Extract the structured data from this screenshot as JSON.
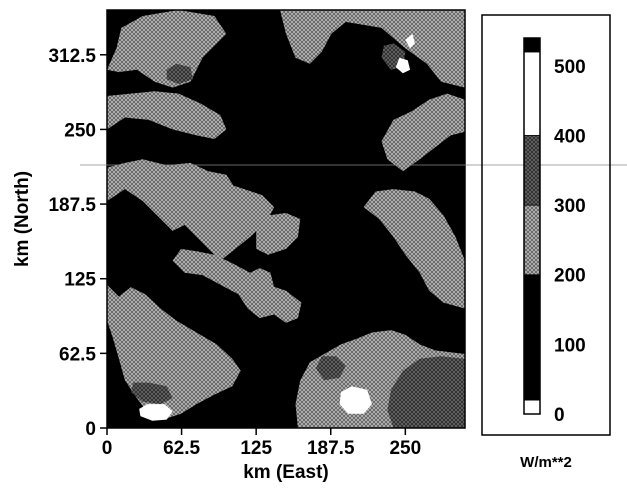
{
  "chart_data": {
    "type": "heatmap",
    "title": "",
    "xlabel": "km (East)",
    "ylabel": "km (North)",
    "xlim": [
      0,
      300
    ],
    "ylim": [
      0,
      350
    ],
    "x_ticks": [
      0,
      62.5,
      125,
      187.5,
      250
    ],
    "x_tick_labels": [
      "0",
      "62.5",
      "125",
      "187.5",
      "250"
    ],
    "y_ticks": [
      0,
      62.5,
      125,
      187.5,
      250,
      312.5
    ],
    "y_tick_labels": [
      "0",
      "62.5",
      "125",
      "187.5",
      "250",
      "312.5"
    ],
    "colorbar": {
      "unit_label": "W/m**2",
      "range": [
        0,
        540
      ],
      "tick_values": [
        0,
        100,
        200,
        300,
        400,
        500
      ],
      "tick_labels": [
        "0",
        "100",
        "200",
        "300",
        "400",
        "500"
      ],
      "bands": [
        {
          "from": 0,
          "to": 20,
          "fill": "white"
        },
        {
          "from": 20,
          "to": 200,
          "fill": "black"
        },
        {
          "from": 200,
          "to": 300,
          "fill": "light-crosshatch"
        },
        {
          "from": 300,
          "to": 400,
          "fill": "dark-crosshatch"
        },
        {
          "from": 400,
          "to": 520,
          "fill": "white"
        },
        {
          "from": 520,
          "to": 540,
          "fill": "black"
        }
      ]
    },
    "regions": [
      {
        "band": "light",
        "points": [
          [
            0,
            190
          ],
          [
            15,
            200
          ],
          [
            30,
            190
          ],
          [
            45,
            175
          ],
          [
            55,
            165
          ],
          [
            65,
            170
          ],
          [
            75,
            160
          ],
          [
            85,
            150
          ],
          [
            95,
            140
          ],
          [
            105,
            148
          ],
          [
            120,
            160
          ],
          [
            135,
            175
          ],
          [
            140,
            185
          ],
          [
            130,
            195
          ],
          [
            115,
            200
          ],
          [
            100,
            205
          ],
          [
            85,
            215
          ],
          [
            70,
            222
          ],
          [
            50,
            220
          ],
          [
            30,
            225
          ],
          [
            15,
            222
          ],
          [
            0,
            218
          ]
        ]
      },
      {
        "band": "light",
        "points": [
          [
            0,
            120
          ],
          [
            10,
            110
          ],
          [
            20,
            118
          ],
          [
            32,
            112
          ],
          [
            45,
            100
          ],
          [
            58,
            90
          ],
          [
            75,
            80
          ],
          [
            92,
            70
          ],
          [
            105,
            58
          ],
          [
            112,
            48
          ],
          [
            105,
            35
          ],
          [
            90,
            28
          ],
          [
            75,
            20
          ],
          [
            62,
            12
          ],
          [
            50,
            8
          ],
          [
            35,
            12
          ],
          [
            25,
            25
          ],
          [
            15,
            40
          ],
          [
            10,
            58
          ],
          [
            5,
            75
          ],
          [
            0,
            90
          ]
        ]
      },
      {
        "band": "light",
        "points": [
          [
            55,
            140
          ],
          [
            65,
            130
          ],
          [
            80,
            128
          ],
          [
            95,
            120
          ],
          [
            110,
            112
          ],
          [
            118,
            100
          ],
          [
            128,
            92
          ],
          [
            140,
            95
          ],
          [
            150,
            88
          ],
          [
            160,
            92
          ],
          [
            163,
            105
          ],
          [
            150,
            115
          ],
          [
            135,
            120
          ],
          [
            120,
            130
          ],
          [
            105,
            138
          ],
          [
            90,
            145
          ],
          [
            75,
            148
          ],
          [
            62,
            150
          ]
        ]
      },
      {
        "band": "light",
        "points": [
          [
            125,
            150
          ],
          [
            135,
            145
          ],
          [
            150,
            150
          ],
          [
            160,
            160
          ],
          [
            162,
            175
          ],
          [
            150,
            180
          ],
          [
            135,
            178
          ],
          [
            125,
            168
          ]
        ]
      },
      {
        "band": "light",
        "points": [
          [
            0,
            250
          ],
          [
            15,
            260
          ],
          [
            35,
            258
          ],
          [
            55,
            250
          ],
          [
            75,
            245
          ],
          [
            90,
            242
          ],
          [
            100,
            250
          ],
          [
            95,
            262
          ],
          [
            78,
            272
          ],
          [
            60,
            280
          ],
          [
            40,
            282
          ],
          [
            20,
            280
          ],
          [
            0,
            278
          ]
        ]
      },
      {
        "band": "light",
        "points": [
          [
            0,
            300
          ],
          [
            8,
            318
          ],
          [
            12,
            335
          ],
          [
            30,
            345
          ],
          [
            60,
            350
          ],
          [
            90,
            345
          ],
          [
            100,
            330
          ],
          [
            80,
            310
          ],
          [
            70,
            290
          ],
          [
            55,
            285
          ],
          [
            40,
            290
          ],
          [
            25,
            300
          ],
          [
            10,
            298
          ]
        ]
      },
      {
        "band": "light",
        "points": [
          [
            145,
            350
          ],
          [
            150,
            330
          ],
          [
            158,
            310
          ],
          [
            170,
            305
          ],
          [
            180,
            315
          ],
          [
            188,
            330
          ],
          [
            200,
            340
          ],
          [
            230,
            335
          ],
          [
            250,
            318
          ],
          [
            268,
            305
          ],
          [
            280,
            290
          ],
          [
            300,
            285
          ],
          [
            300,
            350
          ]
        ]
      },
      {
        "band": "light",
        "points": [
          [
            230,
            240
          ],
          [
            235,
            225
          ],
          [
            248,
            215
          ],
          [
            262,
            225
          ],
          [
            275,
            235
          ],
          [
            288,
            245
          ],
          [
            300,
            248
          ],
          [
            300,
            275
          ],
          [
            285,
            280
          ],
          [
            270,
            275
          ],
          [
            255,
            265
          ],
          [
            240,
            258
          ]
        ]
      },
      {
        "band": "light",
        "points": [
          [
            215,
            185
          ],
          [
            228,
            175
          ],
          [
            240,
            160
          ],
          [
            250,
            145
          ],
          [
            262,
            130
          ],
          [
            270,
            115
          ],
          [
            282,
            105
          ],
          [
            300,
            100
          ],
          [
            300,
            140
          ],
          [
            292,
            160
          ],
          [
            282,
            178
          ],
          [
            270,
            192
          ],
          [
            258,
            198
          ],
          [
            240,
            200
          ],
          [
            225,
            198
          ]
        ]
      },
      {
        "band": "light",
        "points": [
          [
            160,
            0
          ],
          [
            158,
            20
          ],
          [
            162,
            40
          ],
          [
            170,
            55
          ],
          [
            182,
            62
          ],
          [
            196,
            70
          ],
          [
            210,
            75
          ],
          [
            222,
            80
          ],
          [
            238,
            82
          ],
          [
            250,
            78
          ],
          [
            262,
            70
          ],
          [
            275,
            65
          ],
          [
            300,
            62
          ],
          [
            300,
            0
          ]
        ]
      },
      {
        "band": "light",
        "points": [
          [
            120,
            130
          ],
          [
            125,
            115
          ],
          [
            132,
            112
          ],
          [
            140,
            118
          ],
          [
            137,
            130
          ],
          [
            128,
            134
          ]
        ]
      },
      {
        "band": "light",
        "points": [
          [
            75,
            205
          ],
          [
            88,
            200
          ],
          [
            100,
            195
          ],
          [
            108,
            200
          ],
          [
            100,
            212
          ],
          [
            85,
            215
          ]
        ]
      },
      {
        "band": "light",
        "points": [
          [
            265,
            330
          ],
          [
            275,
            320
          ],
          [
            290,
            318
          ],
          [
            300,
            320
          ],
          [
            300,
            345
          ],
          [
            285,
            345
          ],
          [
            270,
            342
          ]
        ]
      },
      {
        "band": "dark",
        "points": [
          [
            240,
            0
          ],
          [
            235,
            15
          ],
          [
            238,
            32
          ],
          [
            248,
            48
          ],
          [
            262,
            58
          ],
          [
            280,
            60
          ],
          [
            300,
            58
          ],
          [
            300,
            0
          ]
        ]
      },
      {
        "band": "dark",
        "points": [
          [
            175,
            50
          ],
          [
            182,
            40
          ],
          [
            195,
            42
          ],
          [
            200,
            52
          ],
          [
            192,
            60
          ],
          [
            180,
            60
          ]
        ]
      },
      {
        "band": "dark",
        "points": [
          [
            20,
            30
          ],
          [
            30,
            22
          ],
          [
            45,
            20
          ],
          [
            55,
            25
          ],
          [
            50,
            35
          ],
          [
            35,
            38
          ],
          [
            22,
            38
          ]
        ]
      },
      {
        "band": "dark",
        "points": [
          [
            50,
            292
          ],
          [
            60,
            288
          ],
          [
            72,
            292
          ],
          [
            70,
            302
          ],
          [
            58,
            305
          ],
          [
            50,
            300
          ]
        ]
      },
      {
        "band": "dark",
        "points": [
          [
            230,
            310
          ],
          [
            238,
            300
          ],
          [
            248,
            302
          ],
          [
            250,
            315
          ],
          [
            240,
            322
          ],
          [
            232,
            320
          ]
        ]
      },
      {
        "band": "white",
        "points": [
          [
            195,
            20
          ],
          [
            202,
            12
          ],
          [
            215,
            12
          ],
          [
            222,
            20
          ],
          [
            218,
            32
          ],
          [
            205,
            35
          ],
          [
            196,
            30
          ]
        ]
      },
      {
        "band": "white",
        "points": [
          [
            28,
            10
          ],
          [
            38,
            6
          ],
          [
            50,
            7
          ],
          [
            55,
            14
          ],
          [
            48,
            20
          ],
          [
            34,
            20
          ],
          [
            27,
            16
          ]
        ]
      },
      {
        "band": "white",
        "points": [
          [
            242,
            302
          ],
          [
            248,
            297
          ],
          [
            254,
            300
          ],
          [
            252,
            308
          ],
          [
            245,
            310
          ]
        ]
      },
      {
        "band": "white",
        "points": [
          [
            250,
            325
          ],
          [
            254,
            318
          ],
          [
            258,
            322
          ],
          [
            256,
            330
          ]
        ]
      }
    ]
  }
}
